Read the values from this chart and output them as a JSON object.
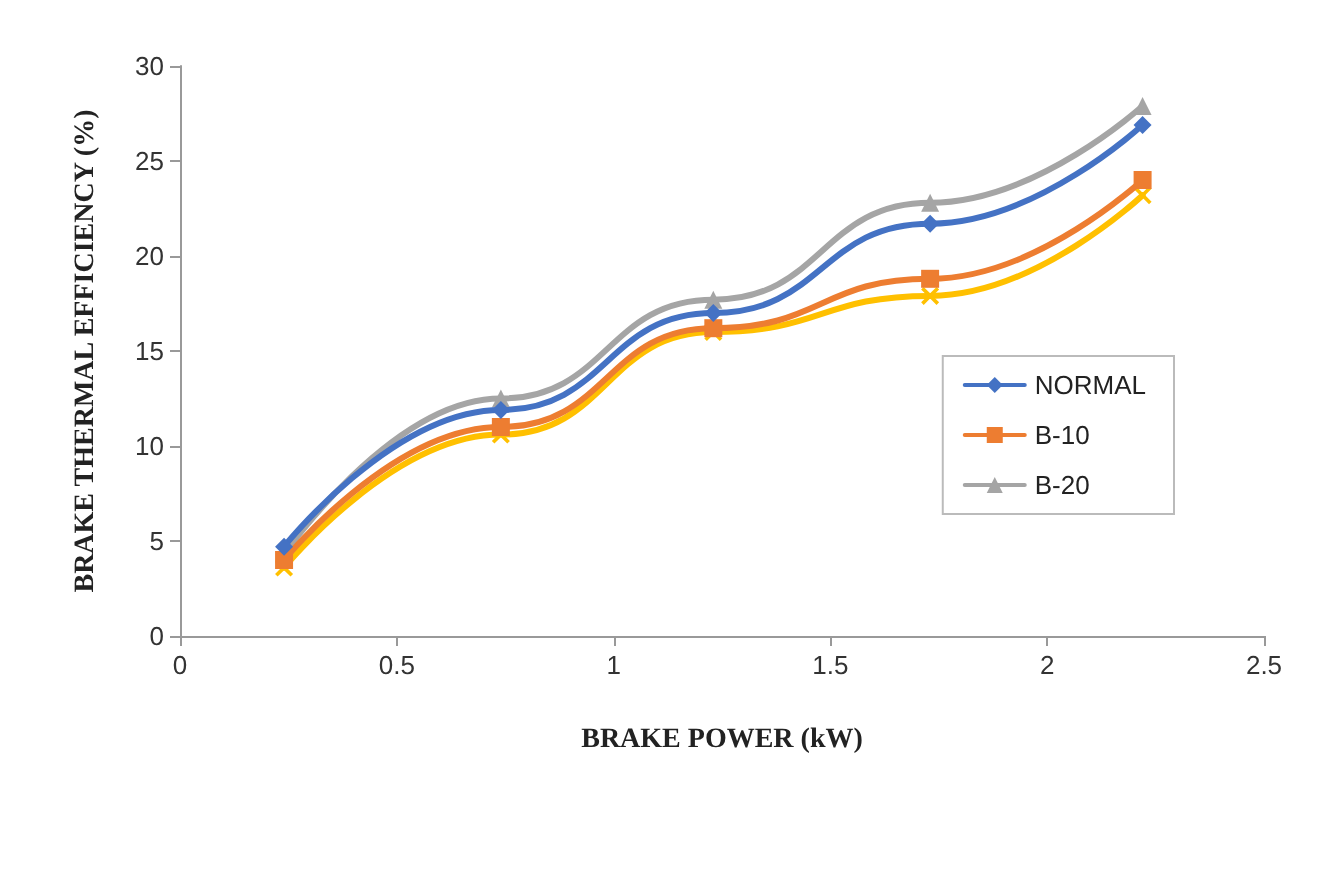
{
  "chart_data": {
    "type": "line",
    "xlabel": "BRAKE POWER (kW)",
    "ylabel": "BRAKE THERMAL EFFICIENCY (%)",
    "x": [
      0.24,
      0.74,
      1.23,
      1.73,
      2.22
    ],
    "series": [
      {
        "name": "NORMAL",
        "color": "#4472c4",
        "marker": "diamond",
        "values": [
          4.7,
          11.9,
          17.0,
          21.7,
          26.9
        ]
      },
      {
        "name": "B-10",
        "color": "#ed7d31",
        "marker": "square",
        "values": [
          4.0,
          11.0,
          16.2,
          18.8,
          24.0
        ]
      },
      {
        "name": "B-20",
        "color": "#a5a5a5",
        "marker": "triangle",
        "values": [
          4.3,
          12.5,
          17.7,
          22.8,
          27.9
        ]
      },
      {
        "color": "#ffc000",
        "marker": "cross",
        "values": [
          3.6,
          10.6,
          16.0,
          17.9,
          23.2
        ]
      }
    ],
    "xlim": [
      0,
      2.5
    ],
    "xticks": [
      0,
      0.5,
      1,
      1.5,
      2,
      2.5
    ],
    "ylim": [
      0,
      30
    ],
    "yticks": [
      0,
      5,
      10,
      15,
      20,
      25,
      30
    ],
    "grid": false,
    "legend": "right",
    "line_style": "solid"
  }
}
